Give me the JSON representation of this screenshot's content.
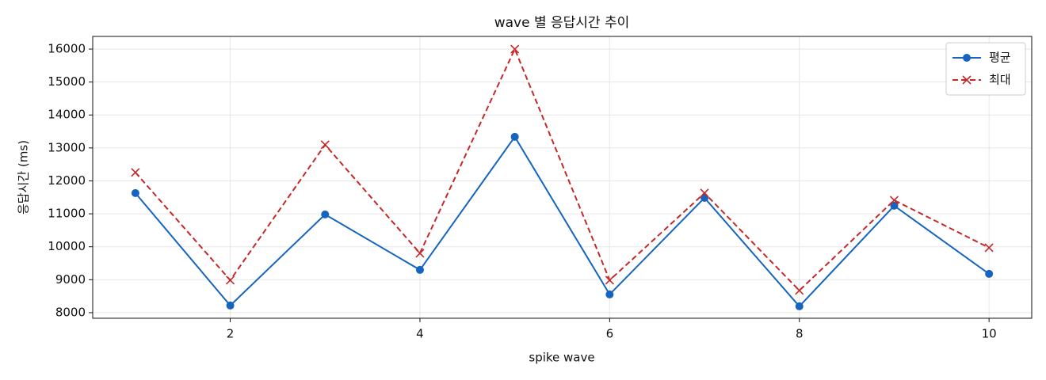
{
  "chart_data": {
    "type": "line",
    "title": "wave 별 응답시간 추이",
    "x_label": "spike wave",
    "y_label": "응답시간 (ms)",
    "x": [
      1,
      2,
      3,
      4,
      5,
      6,
      7,
      8,
      9,
      10
    ],
    "series": [
      {
        "name": "평균",
        "color": "#1565c0",
        "marker": "o",
        "linestyle": "solid",
        "values": [
          11630,
          8216,
          10981,
          9298,
          13337,
          8553,
          11486,
          8192,
          11245,
          9178
        ]
      },
      {
        "name": "최대",
        "color": "#c62828",
        "marker": "x",
        "linestyle": "dashed",
        "values": [
          12255,
          8986,
          13096,
          9803,
          16000,
          8986,
          11630,
          8673,
          11413,
          9971
        ]
      }
    ],
    "xlim": [
      0.55,
      10.45
    ],
    "xticks": [
      2,
      4,
      6,
      8,
      10
    ],
    "ylim": [
      7830,
      16385
    ],
    "yticks": [
      8000,
      9000,
      10000,
      11000,
      12000,
      13000,
      14000,
      15000,
      16000
    ],
    "grid": true,
    "legend": "upper right"
  }
}
